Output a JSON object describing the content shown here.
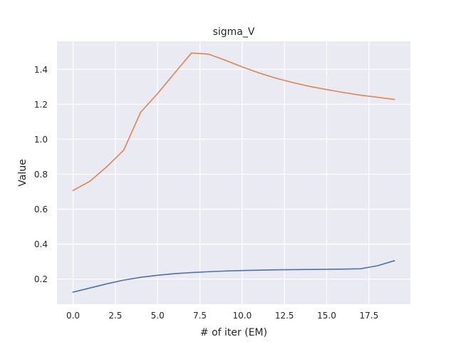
{
  "chart_data": {
    "type": "line",
    "title": "sigma_V",
    "xlabel": "# of iter (EM)",
    "ylabel": "Value",
    "xlim": [
      -0.95,
      19.95
    ],
    "ylim": [
      0.056,
      1.56
    ],
    "xticks": [
      0,
      2.5,
      5,
      7.5,
      10,
      12.5,
      15,
      17.5
    ],
    "xtick_labels": [
      "0.0",
      "2.5",
      "5.0",
      "7.5",
      "10.0",
      "12.5",
      "15.0",
      "17.5"
    ],
    "yticks": [
      0.2,
      0.4,
      0.6,
      0.8,
      1.0,
      1.2,
      1.4
    ],
    "ytick_labels": [
      "0.2",
      "0.4",
      "0.6",
      "0.8",
      "1.0",
      "1.2",
      "1.4"
    ],
    "grid": true,
    "x": [
      0,
      1,
      2,
      3,
      4,
      5,
      6,
      7,
      8,
      9,
      10,
      11,
      12,
      13,
      14,
      15,
      16,
      17,
      18,
      19
    ],
    "series": [
      {
        "color": "#4c72b0",
        "values": [
          0.125,
          0.149,
          0.173,
          0.194,
          0.21,
          0.222,
          0.231,
          0.237,
          0.242,
          0.246,
          0.249,
          0.251,
          0.253,
          0.254,
          0.255,
          0.256,
          0.257,
          0.259,
          0.276,
          0.305
        ]
      },
      {
        "color": "#dd8452",
        "values": [
          0.707,
          0.76,
          0.843,
          0.938,
          1.155,
          1.261,
          1.378,
          1.493,
          1.487,
          1.452,
          1.414,
          1.379,
          1.349,
          1.324,
          1.302,
          1.284,
          1.267,
          1.252,
          1.24,
          1.228
        ]
      }
    ]
  }
}
